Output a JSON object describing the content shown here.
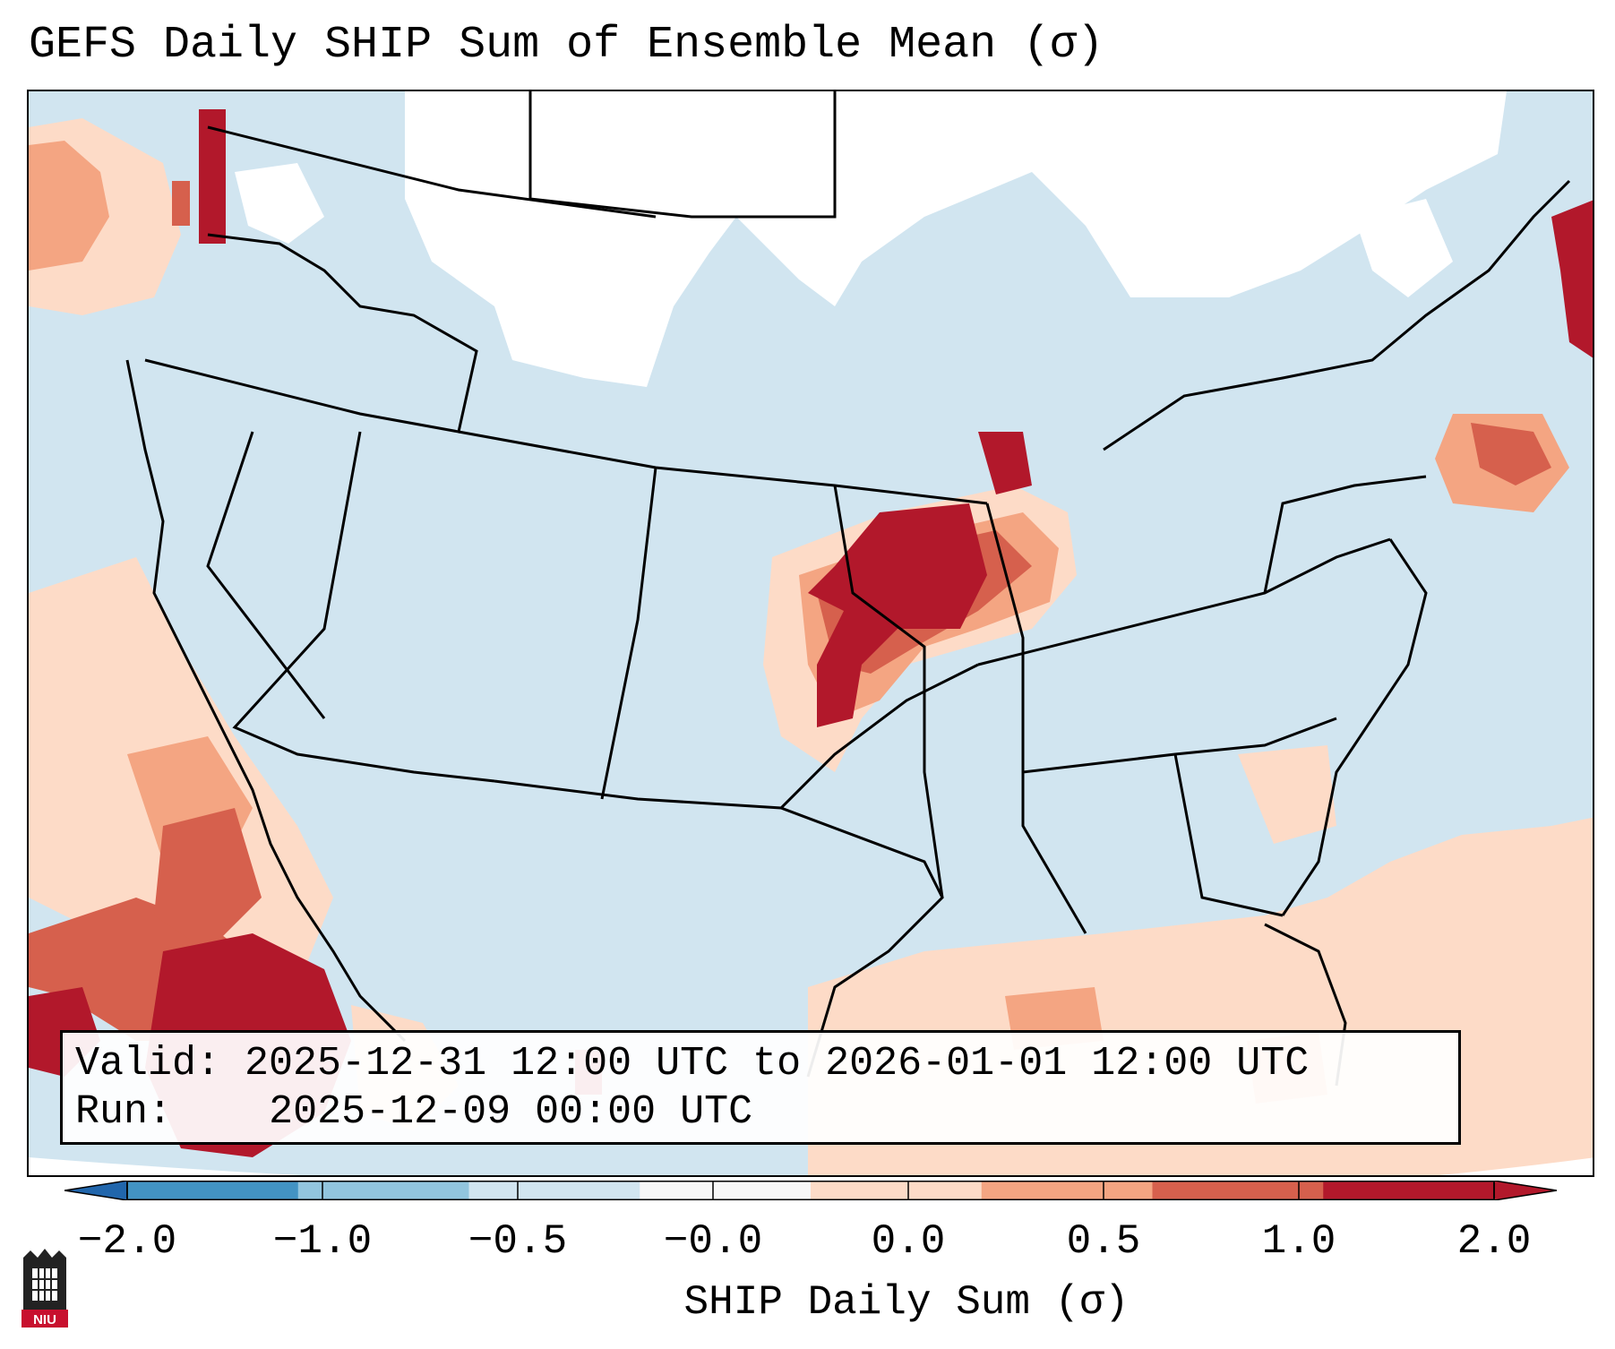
{
  "title": "GEFS Daily SHIP Sum of Ensemble Mean (σ)",
  "info": {
    "valid_label": "Valid:",
    "valid_value": "2025-12-31 12:00 UTC to 2026-01-01 12:00 UTC",
    "run_label": "Run:",
    "run_value": "2025-12-09 00:00 UTC"
  },
  "colorbar": {
    "label": "SHIP Daily Sum (σ)",
    "ticks": [
      "−2.0",
      "−1.0",
      "−0.5",
      "−0.0",
      "0.0",
      "0.5",
      "1.0",
      "2.0"
    ],
    "colors": [
      "#4393c3",
      "#92c5de",
      "#d1e5f0",
      "#f7f7f7",
      "#fddbc7",
      "#f4a582",
      "#d6604d",
      "#b2182b"
    ],
    "extend": "both"
  },
  "logo": {
    "text": "NIU"
  },
  "icons": [
    "niu-logo-icon"
  ],
  "colors": {
    "background_sea": "#d1e5f0",
    "unshaded": "#ffffff",
    "light_red": "#fddbc7",
    "mid_red": "#f4a582",
    "strong_red": "#d6604d",
    "dark_red": "#b2182b"
  }
}
